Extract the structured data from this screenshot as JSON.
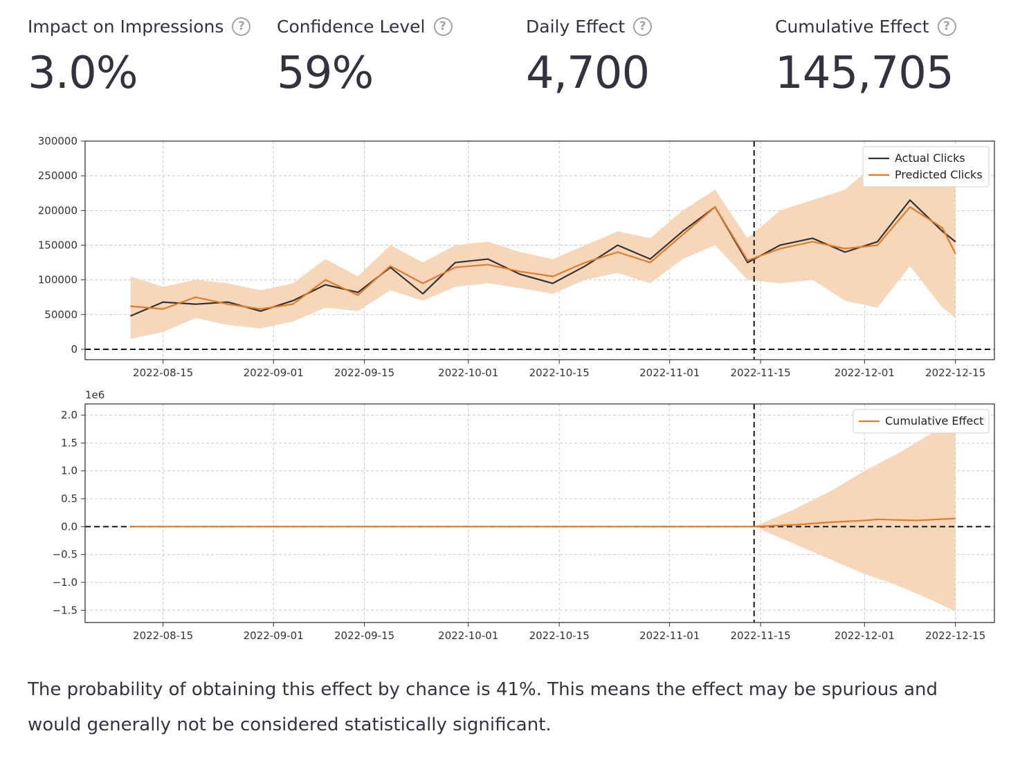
{
  "metrics": [
    {
      "label": "Impact on Impressions",
      "value": "3.0%"
    },
    {
      "label": "Confidence Level",
      "value": "59%"
    },
    {
      "label": "Daily Effect",
      "value": "4,700"
    },
    {
      "label": "Cumulative Effect",
      "value": "145,705"
    }
  ],
  "help_icon_glyph": "?",
  "summary_text": "The probability of obtaining this effect by chance is 41%. This means the effect may be spurious and would generally not be considered statistically significant.",
  "colors": {
    "actual": "#333333",
    "predicted": "#e07b28",
    "band": "#f7d5b5",
    "text": "#31333f"
  },
  "chart_data": [
    {
      "type": "line",
      "title": "",
      "xlabel": "",
      "ylabel": "",
      "x_ticks": [
        "2022-08-15",
        "2022-09-01",
        "2022-09-15",
        "2022-10-01",
        "2022-10-15",
        "2022-11-01",
        "2022-11-15",
        "2022-12-01",
        "2022-12-15"
      ],
      "y_ticks": [
        "0",
        "50000",
        "100000",
        "150000",
        "200000",
        "250000",
        "300000"
      ],
      "ylim": [
        -15000,
        300000
      ],
      "legend": [
        "Actual Clicks",
        "Predicted Clicks"
      ],
      "legend_position": "top-right",
      "intervention_date": "2022-11-14",
      "series": [
        {
          "name": "Actual Clicks",
          "x": [
            "2022-08-10",
            "2022-08-15",
            "2022-08-20",
            "2022-08-25",
            "2022-08-30",
            "2022-09-04",
            "2022-09-09",
            "2022-09-14",
            "2022-09-19",
            "2022-09-24",
            "2022-09-29",
            "2022-10-04",
            "2022-10-09",
            "2022-10-14",
            "2022-10-19",
            "2022-10-24",
            "2022-10-29",
            "2022-11-03",
            "2022-11-08",
            "2022-11-13",
            "2022-11-18",
            "2022-11-23",
            "2022-11-28",
            "2022-12-03",
            "2022-12-08",
            "2022-12-13",
            "2022-12-15"
          ],
          "values": [
            48000,
            68000,
            65000,
            68000,
            55000,
            70000,
            93000,
            82000,
            118000,
            80000,
            125000,
            130000,
            108000,
            95000,
            120000,
            150000,
            130000,
            170000,
            205000,
            125000,
            150000,
            160000,
            140000,
            155000,
            215000,
            170000,
            155000
          ]
        },
        {
          "name": "Predicted Clicks",
          "x": [
            "2022-08-10",
            "2022-08-15",
            "2022-08-20",
            "2022-08-25",
            "2022-08-30",
            "2022-09-04",
            "2022-09-09",
            "2022-09-14",
            "2022-09-19",
            "2022-09-24",
            "2022-09-29",
            "2022-10-04",
            "2022-10-09",
            "2022-10-14",
            "2022-10-19",
            "2022-10-24",
            "2022-10-29",
            "2022-11-03",
            "2022-11-08",
            "2022-11-13",
            "2022-11-18",
            "2022-11-23",
            "2022-11-28",
            "2022-12-03",
            "2022-12-08",
            "2022-12-13",
            "2022-12-15"
          ],
          "values": [
            62000,
            58000,
            75000,
            65000,
            58000,
            65000,
            100000,
            78000,
            120000,
            95000,
            118000,
            122000,
            112000,
            105000,
            125000,
            140000,
            125000,
            165000,
            205000,
            128000,
            145000,
            155000,
            145000,
            150000,
            205000,
            175000,
            138000
          ]
        }
      ],
      "band": {
        "name": "Predicted interval",
        "x": [
          "2022-08-10",
          "2022-08-15",
          "2022-08-20",
          "2022-08-25",
          "2022-08-30",
          "2022-09-04",
          "2022-09-09",
          "2022-09-14",
          "2022-09-19",
          "2022-09-24",
          "2022-09-29",
          "2022-10-04",
          "2022-10-09",
          "2022-10-14",
          "2022-10-19",
          "2022-10-24",
          "2022-10-29",
          "2022-11-03",
          "2022-11-08",
          "2022-11-13",
          "2022-11-18",
          "2022-11-23",
          "2022-11-28",
          "2022-12-03",
          "2022-12-08",
          "2022-12-13",
          "2022-12-15"
        ],
        "lower": [
          15000,
          25000,
          45000,
          35000,
          30000,
          40000,
          60000,
          55000,
          85000,
          70000,
          90000,
          95000,
          88000,
          80000,
          100000,
          110000,
          95000,
          130000,
          150000,
          100000,
          95000,
          100000,
          70000,
          60000,
          120000,
          60000,
          45000
        ],
        "upper": [
          105000,
          90000,
          100000,
          95000,
          85000,
          95000,
          130000,
          105000,
          150000,
          125000,
          150000,
          155000,
          140000,
          130000,
          150000,
          170000,
          160000,
          200000,
          230000,
          160000,
          200000,
          215000,
          230000,
          270000,
          270000,
          260000,
          250000
        ]
      }
    },
    {
      "type": "line",
      "title": "",
      "xlabel": "",
      "ylabel": "",
      "y_scale_label": "1e6",
      "x_ticks": [
        "2022-08-15",
        "2022-09-01",
        "2022-09-15",
        "2022-10-01",
        "2022-10-15",
        "2022-11-01",
        "2022-11-15",
        "2022-12-01",
        "2022-12-15"
      ],
      "y_ticks": [
        "−1.5",
        "−1.0",
        "−0.5",
        "0.0",
        "0.5",
        "1.0",
        "1.5",
        "2.0"
      ],
      "ylim": [
        -1.72,
        2.2
      ],
      "legend": [
        "Cumulative Effect"
      ],
      "legend_position": "top-right",
      "intervention_date": "2022-11-14",
      "series": [
        {
          "name": "Cumulative Effect",
          "x": [
            "2022-08-10",
            "2022-11-14",
            "2022-11-20",
            "2022-11-26",
            "2022-12-01",
            "2022-12-03",
            "2022-12-09",
            "2022-12-15"
          ],
          "values": [
            0.0,
            0.0,
            0.03,
            0.08,
            0.11,
            0.13,
            0.11,
            0.146
          ]
        }
      ],
      "band": {
        "name": "Cumulative interval",
        "x": [
          "2022-11-14",
          "2022-11-20",
          "2022-11-26",
          "2022-12-01",
          "2022-12-06",
          "2022-12-11",
          "2022-12-15"
        ],
        "lower": [
          0.0,
          -0.3,
          -0.6,
          -0.85,
          -1.05,
          -1.3,
          -1.52
        ],
        "upper": [
          0.0,
          0.3,
          0.65,
          1.0,
          1.3,
          1.65,
          1.95
        ]
      }
    }
  ]
}
